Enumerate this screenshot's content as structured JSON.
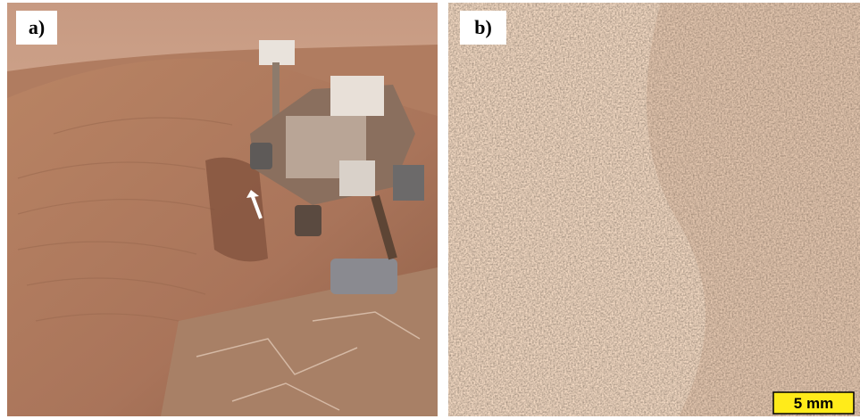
{
  "panels": [
    {
      "label": "a)"
    },
    {
      "label": "b)",
      "scale_bar": "5 mm"
    }
  ]
}
